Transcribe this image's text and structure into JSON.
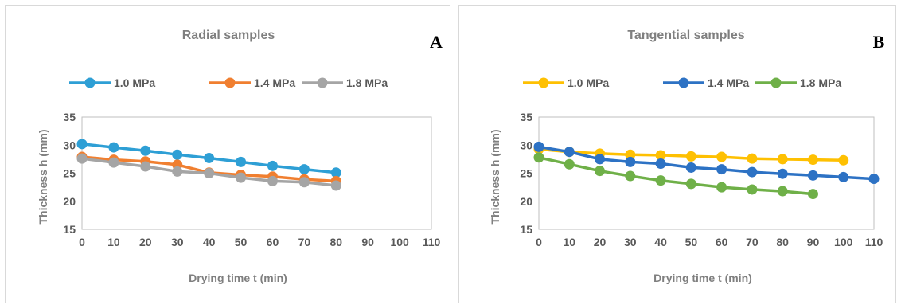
{
  "chart_data": [
    {
      "type": "line",
      "title": "Radial samples",
      "panel_label": "A",
      "xlabel": "Drying time t (min)",
      "ylabel": "Thickness h (mm)",
      "xlim": [
        0,
        110
      ],
      "ylim": [
        15,
        35
      ],
      "xticks": [
        0,
        10,
        20,
        30,
        40,
        50,
        60,
        70,
        80,
        90,
        100,
        110
      ],
      "yticks": [
        15,
        20,
        25,
        30,
        35
      ],
      "grid": false,
      "legend_position": "top",
      "series": [
        {
          "name": "1.0 MPa",
          "color": "#2e9fd5",
          "x": [
            0,
            10,
            20,
            30,
            40,
            50,
            60,
            70,
            80
          ],
          "y": [
            30.2,
            29.6,
            29.0,
            28.3,
            27.7,
            27.0,
            26.3,
            25.7,
            25.1
          ]
        },
        {
          "name": "1.4 MPa",
          "color": "#f07f30",
          "x": [
            0,
            10,
            20,
            30,
            40,
            50,
            60,
            70,
            80
          ],
          "y": [
            27.9,
            27.4,
            27.1,
            26.5,
            25.1,
            24.7,
            24.4,
            23.9,
            23.6
          ]
        },
        {
          "name": "1.8 MPa",
          "color": "#a5a5a5",
          "x": [
            0,
            10,
            20,
            30,
            40,
            50,
            60,
            70,
            80
          ],
          "y": [
            27.6,
            26.9,
            26.2,
            25.3,
            25.0,
            24.2,
            23.6,
            23.4,
            22.8
          ]
        }
      ]
    },
    {
      "type": "line",
      "title": "Tangential samples",
      "panel_label": "B",
      "xlabel": "Drying time t (min)",
      "ylabel": "Thickness h (mm)",
      "xlim": [
        0,
        110
      ],
      "ylim": [
        15,
        35
      ],
      "xticks": [
        0,
        10,
        20,
        30,
        40,
        50,
        60,
        70,
        80,
        90,
        100,
        110
      ],
      "yticks": [
        15,
        20,
        25,
        30,
        35
      ],
      "grid": false,
      "legend_position": "top",
      "series": [
        {
          "name": "1.0 MPa",
          "color": "#fec002",
          "x": [
            0,
            10,
            20,
            30,
            40,
            50,
            60,
            70,
            80,
            90,
            100
          ],
          "y": [
            29.3,
            28.8,
            28.5,
            28.3,
            28.2,
            28.0,
            27.9,
            27.6,
            27.5,
            27.4,
            27.3
          ]
        },
        {
          "name": "1.4 MPa",
          "color": "#2d72c4",
          "x": [
            0,
            10,
            20,
            30,
            40,
            50,
            60,
            70,
            80,
            90,
            100,
            110
          ],
          "y": [
            29.7,
            28.8,
            27.5,
            27.0,
            26.7,
            26.0,
            25.7,
            25.2,
            24.9,
            24.6,
            24.3,
            24.0
          ]
        },
        {
          "name": "1.8 MPa",
          "color": "#6fb048",
          "x": [
            0,
            10,
            20,
            30,
            40,
            50,
            60,
            70,
            80,
            90
          ],
          "y": [
            27.8,
            26.6,
            25.4,
            24.5,
            23.7,
            23.1,
            22.5,
            22.1,
            21.8,
            21.3
          ]
        }
      ]
    }
  ]
}
